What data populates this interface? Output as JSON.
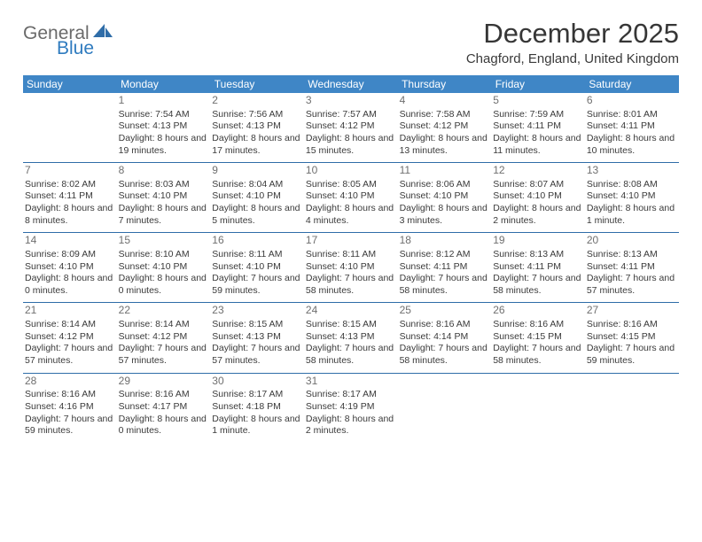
{
  "logo": {
    "word1": "General",
    "word2": "Blue"
  },
  "title": "December 2025",
  "location": "Chagford, England, United Kingdom",
  "colors": {
    "header_bg": "#3f86c6",
    "header_text": "#ffffff",
    "rule": "#2f6da8",
    "daynum": "#6f6f6f",
    "body_text": "#3a3a3a",
    "logo_gray": "#6a6a6a",
    "logo_blue": "#2f7bbf"
  },
  "fonts": {
    "title_pt": 31,
    "location_pt": 15,
    "dow_pt": 12,
    "daynum_pt": 12,
    "body_pt": 10.5
  },
  "days_of_week": [
    "Sunday",
    "Monday",
    "Tuesday",
    "Wednesday",
    "Thursday",
    "Friday",
    "Saturday"
  ],
  "weeks": [
    [
      null,
      {
        "n": "1",
        "sr": "Sunrise: 7:54 AM",
        "ss": "Sunset: 4:13 PM",
        "dl": "Daylight: 8 hours and 19 minutes."
      },
      {
        "n": "2",
        "sr": "Sunrise: 7:56 AM",
        "ss": "Sunset: 4:13 PM",
        "dl": "Daylight: 8 hours and 17 minutes."
      },
      {
        "n": "3",
        "sr": "Sunrise: 7:57 AM",
        "ss": "Sunset: 4:12 PM",
        "dl": "Daylight: 8 hours and 15 minutes."
      },
      {
        "n": "4",
        "sr": "Sunrise: 7:58 AM",
        "ss": "Sunset: 4:12 PM",
        "dl": "Daylight: 8 hours and 13 minutes."
      },
      {
        "n": "5",
        "sr": "Sunrise: 7:59 AM",
        "ss": "Sunset: 4:11 PM",
        "dl": "Daylight: 8 hours and 11 minutes."
      },
      {
        "n": "6",
        "sr": "Sunrise: 8:01 AM",
        "ss": "Sunset: 4:11 PM",
        "dl": "Daylight: 8 hours and 10 minutes."
      }
    ],
    [
      {
        "n": "7",
        "sr": "Sunrise: 8:02 AM",
        "ss": "Sunset: 4:11 PM",
        "dl": "Daylight: 8 hours and 8 minutes."
      },
      {
        "n": "8",
        "sr": "Sunrise: 8:03 AM",
        "ss": "Sunset: 4:10 PM",
        "dl": "Daylight: 8 hours and 7 minutes."
      },
      {
        "n": "9",
        "sr": "Sunrise: 8:04 AM",
        "ss": "Sunset: 4:10 PM",
        "dl": "Daylight: 8 hours and 5 minutes."
      },
      {
        "n": "10",
        "sr": "Sunrise: 8:05 AM",
        "ss": "Sunset: 4:10 PM",
        "dl": "Daylight: 8 hours and 4 minutes."
      },
      {
        "n": "11",
        "sr": "Sunrise: 8:06 AM",
        "ss": "Sunset: 4:10 PM",
        "dl": "Daylight: 8 hours and 3 minutes."
      },
      {
        "n": "12",
        "sr": "Sunrise: 8:07 AM",
        "ss": "Sunset: 4:10 PM",
        "dl": "Daylight: 8 hours and 2 minutes."
      },
      {
        "n": "13",
        "sr": "Sunrise: 8:08 AM",
        "ss": "Sunset: 4:10 PM",
        "dl": "Daylight: 8 hours and 1 minute."
      }
    ],
    [
      {
        "n": "14",
        "sr": "Sunrise: 8:09 AM",
        "ss": "Sunset: 4:10 PM",
        "dl": "Daylight: 8 hours and 0 minutes."
      },
      {
        "n": "15",
        "sr": "Sunrise: 8:10 AM",
        "ss": "Sunset: 4:10 PM",
        "dl": "Daylight: 8 hours and 0 minutes."
      },
      {
        "n": "16",
        "sr": "Sunrise: 8:11 AM",
        "ss": "Sunset: 4:10 PM",
        "dl": "Daylight: 7 hours and 59 minutes."
      },
      {
        "n": "17",
        "sr": "Sunrise: 8:11 AM",
        "ss": "Sunset: 4:10 PM",
        "dl": "Daylight: 7 hours and 58 minutes."
      },
      {
        "n": "18",
        "sr": "Sunrise: 8:12 AM",
        "ss": "Sunset: 4:11 PM",
        "dl": "Daylight: 7 hours and 58 minutes."
      },
      {
        "n": "19",
        "sr": "Sunrise: 8:13 AM",
        "ss": "Sunset: 4:11 PM",
        "dl": "Daylight: 7 hours and 58 minutes."
      },
      {
        "n": "20",
        "sr": "Sunrise: 8:13 AM",
        "ss": "Sunset: 4:11 PM",
        "dl": "Daylight: 7 hours and 57 minutes."
      }
    ],
    [
      {
        "n": "21",
        "sr": "Sunrise: 8:14 AM",
        "ss": "Sunset: 4:12 PM",
        "dl": "Daylight: 7 hours and 57 minutes."
      },
      {
        "n": "22",
        "sr": "Sunrise: 8:14 AM",
        "ss": "Sunset: 4:12 PM",
        "dl": "Daylight: 7 hours and 57 minutes."
      },
      {
        "n": "23",
        "sr": "Sunrise: 8:15 AM",
        "ss": "Sunset: 4:13 PM",
        "dl": "Daylight: 7 hours and 57 minutes."
      },
      {
        "n": "24",
        "sr": "Sunrise: 8:15 AM",
        "ss": "Sunset: 4:13 PM",
        "dl": "Daylight: 7 hours and 58 minutes."
      },
      {
        "n": "25",
        "sr": "Sunrise: 8:16 AM",
        "ss": "Sunset: 4:14 PM",
        "dl": "Daylight: 7 hours and 58 minutes."
      },
      {
        "n": "26",
        "sr": "Sunrise: 8:16 AM",
        "ss": "Sunset: 4:15 PM",
        "dl": "Daylight: 7 hours and 58 minutes."
      },
      {
        "n": "27",
        "sr": "Sunrise: 8:16 AM",
        "ss": "Sunset: 4:15 PM",
        "dl": "Daylight: 7 hours and 59 minutes."
      }
    ],
    [
      {
        "n": "28",
        "sr": "Sunrise: 8:16 AM",
        "ss": "Sunset: 4:16 PM",
        "dl": "Daylight: 7 hours and 59 minutes."
      },
      {
        "n": "29",
        "sr": "Sunrise: 8:16 AM",
        "ss": "Sunset: 4:17 PM",
        "dl": "Daylight: 8 hours and 0 minutes."
      },
      {
        "n": "30",
        "sr": "Sunrise: 8:17 AM",
        "ss": "Sunset: 4:18 PM",
        "dl": "Daylight: 8 hours and 1 minute."
      },
      {
        "n": "31",
        "sr": "Sunrise: 8:17 AM",
        "ss": "Sunset: 4:19 PM",
        "dl": "Daylight: 8 hours and 2 minutes."
      },
      null,
      null,
      null
    ]
  ]
}
